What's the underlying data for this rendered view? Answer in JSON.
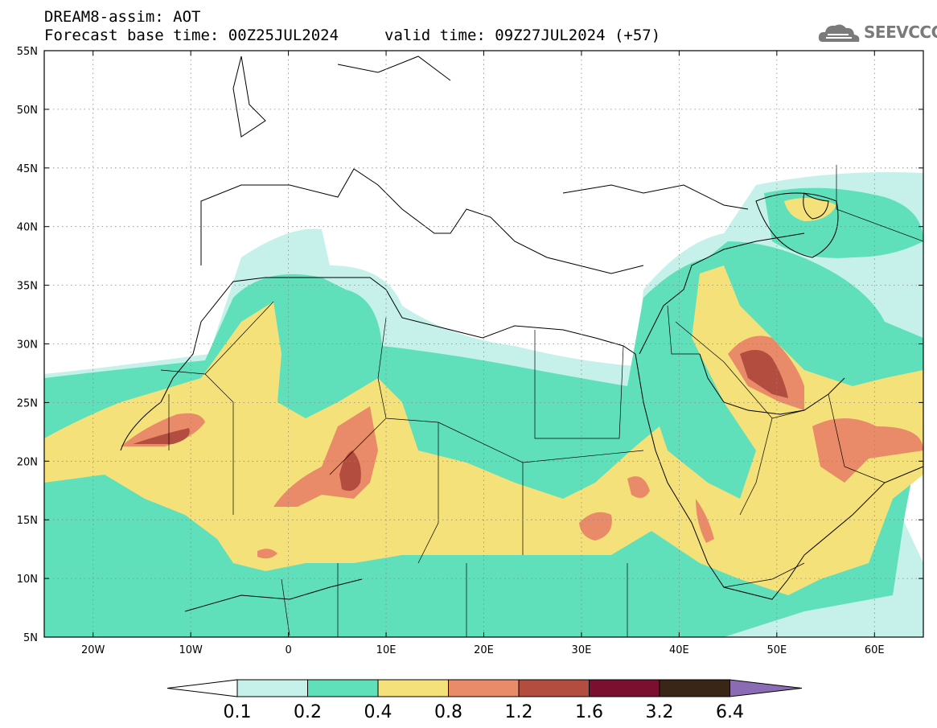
{
  "header": {
    "title": "DREAM8-assim: AOT",
    "base_time": "Forecast base time: 00Z25JUL2024",
    "valid_time": "valid time: 09Z27JUL2024 (+57)"
  },
  "logo": {
    "text": "SEEVCCC",
    "icon": "cloud-icon"
  },
  "map": {
    "lat_range": [
      5,
      55
    ],
    "lon_range": [
      -25,
      65
    ],
    "lat_ticks": [
      "5N",
      "10N",
      "15N",
      "20N",
      "25N",
      "30N",
      "35N",
      "40N",
      "45N",
      "50N",
      "55N"
    ],
    "lon_ticks": [
      "20W",
      "10W",
      "0",
      "10E",
      "20E",
      "30E",
      "40E",
      "50E",
      "60E"
    ],
    "grid": "dotted"
  },
  "colorbar": {
    "labels": [
      "0.1",
      "0.2",
      "0.4",
      "0.8",
      "1.2",
      "1.6",
      "3.2",
      "6.4"
    ],
    "colors": [
      "#c6f1ea",
      "#5fe0bb",
      "#f5e17a",
      "#e98b68",
      "#b24d3f",
      "#7b0f2f",
      "#3a2616"
    ],
    "under_color": "#ffffff",
    "over_color": "#8b6bb3"
  },
  "colors": {
    "aot_0_1": "#c6f1ea",
    "aot_0_2": "#5fe0bb",
    "aot_0_4": "#f5e17a",
    "aot_0_8": "#e98b68",
    "aot_1_2": "#b24d3f",
    "aot_1_6": "#7b0f2f"
  }
}
